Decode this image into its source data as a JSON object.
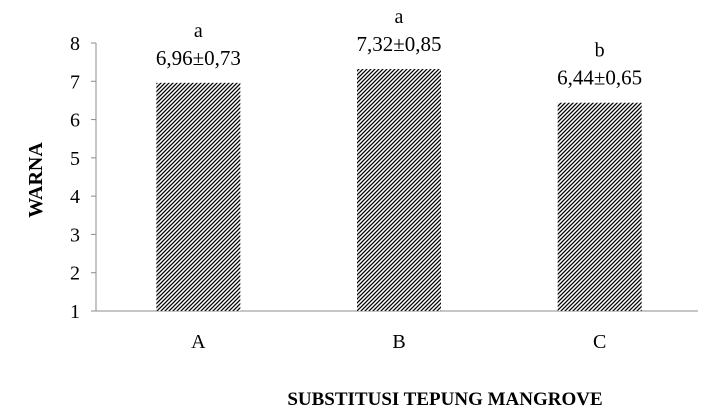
{
  "chart_data": {
    "type": "bar",
    "categories": [
      "A",
      "B",
      "C"
    ],
    "values": [
      6.96,
      7.32,
      6.44
    ],
    "data_labels": [
      "6,96±0,73",
      "7,32±0,85",
      "6,44±0,65"
    ],
    "significance_letters": [
      "a",
      "a",
      "b"
    ],
    "xlabel": "SUBSTITUSI TEPUNG MANGROVE",
    "ylabel": "WARNA",
    "ylim": [
      1,
      8
    ],
    "yticks": [
      1,
      2,
      3,
      4,
      5,
      6,
      7,
      8
    ],
    "grid": false,
    "legend": "none",
    "bar_pattern": "diagonal-hatch",
    "colors": {
      "bar_hatch": "#000000",
      "bar_fill": "#ffffff",
      "axis": "#8c8c8c"
    }
  }
}
